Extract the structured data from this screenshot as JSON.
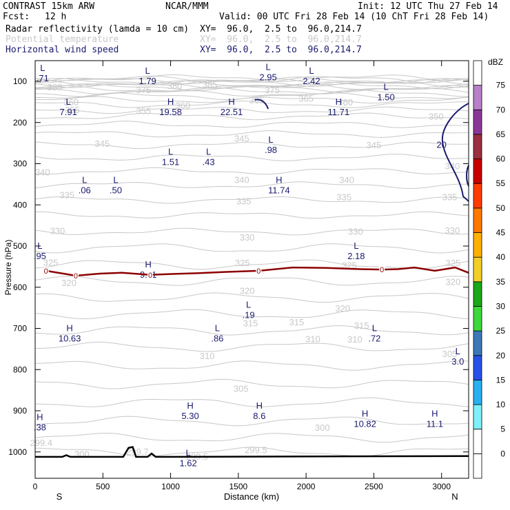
{
  "header": {
    "title": "CONTRAST 15km ARW",
    "source": "NCAR/MMM",
    "init": "Init: 12 UTC Thu 27 Feb 14",
    "fcst_label": "Fcst:",
    "fcst_value": "12 h",
    "valid": "Valid: 00 UTC Fri 28 Feb 14 (10 ChT Fri 28 Feb 14)",
    "fields": [
      {
        "name": "Radar reflectivity (lamda = 10 cm)",
        "xy": "XY=  96.0,  2.5 to  96.0,214.7",
        "color": "#000000"
      },
      {
        "name": "Potential temperature",
        "xy": "XY=  96.0,  2.5 to  96.0,214.7",
        "color": "#c8c8c8"
      },
      {
        "name": "Horizontal wind speed",
        "xy": "XY=  96.0,  2.5 to  96.0,214.7",
        "color": "#1a1a6e"
      }
    ]
  },
  "chart_data": {
    "type": "cross-section",
    "xlabel": "Distance (km)",
    "ylabel": "Pressure (hPa)",
    "xlim": [
      0,
      3200
    ],
    "ylim": [
      1050,
      60
    ],
    "x_ticks": [
      0,
      500,
      1000,
      1500,
      2000,
      2500,
      3000
    ],
    "y_ticks": [
      100,
      200,
      300,
      400,
      500,
      600,
      700,
      800,
      900,
      1000
    ],
    "x_end_labels": {
      "left": "S",
      "right": "N"
    },
    "colorbar": {
      "unit": "dBZ",
      "levels": [
        "0",
        "5",
        "10",
        "15",
        "20",
        "25",
        "30",
        "35",
        "40",
        "45",
        "50",
        "55",
        "60",
        "65",
        "70",
        "75"
      ],
      "colors": [
        "#ffffff",
        "#ffffff",
        "#7ff0f8",
        "#28b0f0",
        "#2850e8",
        "#3c78b8",
        "#3cd83c",
        "#18a818",
        "#f0d028",
        "#ffb000",
        "#ff7800",
        "#ff3c00",
        "#c80000",
        "#9a3040",
        "#8a3898",
        "#b880c8",
        "#ffffff"
      ]
    },
    "theta_labels": [
      {
        "v": "380",
        "x": 145,
        "p": 115
      },
      {
        "v": "380",
        "x": 1030,
        "p": 112
      },
      {
        "v": "375",
        "x": 800,
        "p": 122
      },
      {
        "v": "385",
        "x": 1290,
        "p": 108
      },
      {
        "v": "375",
        "x": 1750,
        "p": 122
      },
      {
        "v": "360",
        "x": 265,
        "p": 152
      },
      {
        "v": "355",
        "x": 275,
        "p": 170
      },
      {
        "v": "355",
        "x": 800,
        "p": 173
      },
      {
        "v": "360",
        "x": 1090,
        "p": 159
      },
      {
        "v": "365",
        "x": 1635,
        "p": 147
      },
      {
        "v": "365",
        "x": 2000,
        "p": 143
      },
      {
        "v": "360",
        "x": 2290,
        "p": 152
      },
      {
        "v": "350",
        "x": 2960,
        "p": 186
      },
      {
        "v": "345",
        "x": 495,
        "p": 252
      },
      {
        "v": "345",
        "x": 1525,
        "p": 240
      },
      {
        "v": "345",
        "x": 2500,
        "p": 256
      },
      {
        "v": "340",
        "x": 55,
        "p": 322
      },
      {
        "v": "340",
        "x": 1525,
        "p": 340
      },
      {
        "v": "340",
        "x": 2300,
        "p": 340
      },
      {
        "v": "340",
        "x": 3080,
        "p": 307
      },
      {
        "v": "335",
        "x": 235,
        "p": 377
      },
      {
        "v": "335",
        "x": 1540,
        "p": 392
      },
      {
        "v": "335",
        "x": 2280,
        "p": 382
      },
      {
        "v": "335",
        "x": 3060,
        "p": 382
      },
      {
        "v": "330",
        "x": 165,
        "p": 464
      },
      {
        "v": "330",
        "x": 1565,
        "p": 480
      },
      {
        "v": "330",
        "x": 2365,
        "p": 466
      },
      {
        "v": "330",
        "x": 3080,
        "p": 463
      },
      {
        "v": "325",
        "x": 115,
        "p": 541
      },
      {
        "v": "325",
        "x": 1530,
        "p": 542
      },
      {
        "v": "325",
        "x": 2320,
        "p": 548
      },
      {
        "v": "325",
        "x": 3085,
        "p": 542
      },
      {
        "v": "320",
        "x": 250,
        "p": 590
      },
      {
        "v": "320",
        "x": 1565,
        "p": 610
      },
      {
        "v": "320",
        "x": 2270,
        "p": 652
      },
      {
        "v": "320",
        "x": 3085,
        "p": 588
      },
      {
        "v": "315",
        "x": 1590,
        "p": 688
      },
      {
        "v": "315",
        "x": 1930,
        "p": 686
      },
      {
        "v": "315",
        "x": 2410,
        "p": 694
      },
      {
        "v": "310",
        "x": 2050,
        "p": 727
      },
      {
        "v": "310",
        "x": 2360,
        "p": 728
      },
      {
        "v": "310",
        "x": 1270,
        "p": 768
      },
      {
        "v": "305",
        "x": 1520,
        "p": 847
      },
      {
        "v": "305",
        "x": 3060,
        "p": 763
      },
      {
        "v": "300",
        "x": 2120,
        "p": 942
      },
      {
        "v": "300",
        "x": 345,
        "p": 1006
      },
      {
        "v": "299.4",
        "x": 45,
        "p": 979
      },
      {
        "v": "299.7",
        "x": 755,
        "p": 1000
      },
      {
        "v": "299.5",
        "x": 1630,
        "p": 996
      },
      {
        "v": "299.5",
        "x": 1195,
        "p": 1012
      }
    ],
    "wind_labels": [
      {
        "type": "L",
        "v": ".71",
        "x": 55,
        "p": 88
      },
      {
        "type": "L",
        "v": "1.79",
        "x": 830,
        "p": 95
      },
      {
        "type": "L",
        "v": "2.95",
        "x": 1720,
        "p": 86
      },
      {
        "type": "L",
        "v": "2.42",
        "x": 2040,
        "p": 95
      },
      {
        "type": "L",
        "v": "1.50",
        "x": 2590,
        "p": 134
      },
      {
        "type": "L",
        "v": "7.91",
        "x": 245,
        "p": 170
      },
      {
        "type": "H",
        "v": "19.58",
        "x": 1000,
        "p": 170
      },
      {
        "type": "H",
        "v": "22.51",
        "x": 1450,
        "p": 170
      },
      {
        "type": "H",
        "v": "11.71",
        "x": 2240,
        "p": 170
      },
      {
        "type": "L",
        "v": ".98",
        "x": 1740,
        "p": 262
      },
      {
        "type": "L",
        "v": "1.51",
        "x": 1000,
        "p": 292
      },
      {
        "type": "L",
        "v": ".43",
        "x": 1280,
        "p": 292
      },
      {
        "type": "L",
        "v": ".06",
        "x": 365,
        "p": 360
      },
      {
        "type": "L",
        "v": ".50",
        "x": 595,
        "p": 360
      },
      {
        "type": "H",
        "v": "11.74",
        "x": 1800,
        "p": 360
      },
      {
        "type": "L",
        "v": ".95",
        "x": 35,
        "p": 520
      },
      {
        "type": "H",
        "v": "9.11",
        "x": 835,
        "p": 565
      },
      {
        "type": "L",
        "v": "2.18",
        "x": 2370,
        "p": 520
      },
      {
        "type": "L",
        "v": ".19",
        "x": 1575,
        "p": 663
      },
      {
        "type": "H",
        "v": "10.63",
        "x": 255,
        "p": 720
      },
      {
        "type": "L",
        "v": ".86",
        "x": 1345,
        "p": 720
      },
      {
        "type": "L",
        "v": ".72",
        "x": 2505,
        "p": 720
      },
      {
        "type": "L",
        "v": "3.0",
        "x": 3120,
        "p": 776
      },
      {
        "type": "H",
        "v": "5.30",
        "x": 1145,
        "p": 908
      },
      {
        "type": "H",
        "v": "8.6",
        "x": 1655,
        "p": 908
      },
      {
        "type": "H",
        "v": "10.82",
        "x": 2435,
        "p": 928
      },
      {
        "type": "H",
        "v": ".38",
        "x": 35,
        "p": 936
      },
      {
        "type": "H",
        "v": "11.1",
        "x": 2950,
        "p": 928
      },
      {
        "type": "L",
        "v": "1.62",
        "x": 1130,
        "p": 1023
      }
    ],
    "wind_20_label": {
      "v": "20",
      "x": 3000,
      "p": 255
    },
    "zero_dbz_contour": {
      "label": "0",
      "points": [
        [
          80,
          560
        ],
        [
          300,
          572
        ],
        [
          480,
          567
        ],
        [
          640,
          565
        ],
        [
          850,
          570
        ],
        [
          1000,
          568
        ],
        [
          1200,
          566
        ],
        [
          1400,
          563
        ],
        [
          1650,
          560
        ],
        [
          1900,
          552
        ],
        [
          2150,
          553
        ],
        [
          2400,
          556
        ],
        [
          2560,
          557
        ],
        [
          2680,
          556
        ],
        [
          2800,
          552
        ],
        [
          2950,
          560
        ],
        [
          3100,
          552
        ],
        [
          3200,
          565
        ]
      ],
      "label_x": [
        80,
        300,
        850,
        1650,
        2560
      ]
    },
    "terrain": [
      [
        0,
        1012
      ],
      [
        200,
        1012
      ],
      [
        230,
        1008
      ],
      [
        260,
        1012
      ],
      [
        650,
        1012
      ],
      [
        690,
        990
      ],
      [
        720,
        988
      ],
      [
        745,
        1012
      ],
      [
        830,
        1012
      ],
      [
        860,
        1004
      ],
      [
        890,
        1012
      ],
      [
        3200,
        1010
      ]
    ]
  }
}
